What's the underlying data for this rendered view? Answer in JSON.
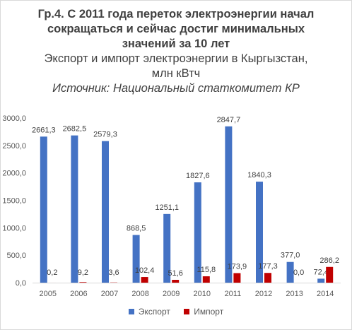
{
  "chart_data": {
    "type": "bar",
    "title": "Гр.4. С 2011 года переток электроэнергии начал\nсокращаться и сейчас достиг минимальных\nзначений за 10 лет",
    "subtitle": "Экспорт и импорт электроэнергии в Кыргызстан,\nмлн кВтч",
    "source": "Источник: Национальный статкомитет КР",
    "categories": [
      "2005",
      "2006",
      "2007",
      "2008",
      "2009",
      "2010",
      "2011",
      "2012",
      "2013",
      "2014"
    ],
    "series": [
      {
        "name": "Экспорт",
        "color": "#4472c4",
        "values": [
          2661.3,
          2682.5,
          2579.3,
          868.5,
          1251.1,
          1827.6,
          2847.7,
          1840.3,
          377.0,
          72.4
        ],
        "labels": [
          "2661,3",
          "2682,5",
          "2579,3",
          "868,5",
          "1251,1",
          "1827,6",
          "2847,7",
          "1840,3",
          "377,0",
          "72,4"
        ]
      },
      {
        "name": "Импорт",
        "color": "#c00000",
        "values": [
          0.2,
          9.2,
          3.6,
          102.4,
          51.6,
          115.8,
          173.9,
          177.3,
          0.0,
          286.2
        ],
        "labels": [
          "0,2",
          "9,2",
          "3,6",
          "102,4",
          "51,6",
          "115,8",
          "173,9",
          "177,3",
          "0,0",
          "286,2"
        ]
      }
    ],
    "ylim": [
      0,
      3000
    ],
    "yticks": [
      "0,0",
      "500,0",
      "1000,0",
      "1500,0",
      "2000,0",
      "2500,0",
      "3000,0"
    ],
    "grid": false,
    "legend": "bottom"
  }
}
